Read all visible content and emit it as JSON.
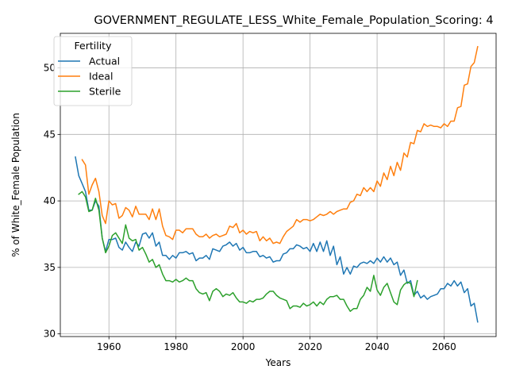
{
  "chart_data": {
    "type": "line",
    "title": "GOVERNMENT_REGULATE_LESS_White_Female_Population_Scoring: 4",
    "xlabel": "Years",
    "ylabel": "% of White_Female Population",
    "xlim": [
      1945.5,
      2075.5
    ],
    "ylim": [
      29.8,
      52.6
    ],
    "x_ticks": [
      1960,
      1980,
      2000,
      2020,
      2040,
      2060
    ],
    "y_ticks": [
      30,
      35,
      40,
      45,
      50
    ],
    "grid": true,
    "legend": {
      "title": "Fertility",
      "placement": "upper-left"
    },
    "series": [
      {
        "name": "Actual",
        "color": "#1f77b4",
        "x": [
          1950,
          1951,
          1952,
          1953,
          1954,
          1955,
          1956,
          1957,
          1958,
          1959,
          1960,
          1961,
          1962,
          1963,
          1964,
          1965,
          1966,
          1967,
          1968,
          1969,
          1970,
          1971,
          1972,
          1973,
          1974,
          1975,
          1976,
          1977,
          1978,
          1979,
          1980,
          1981,
          1982,
          1983,
          1984,
          1985,
          1986,
          1987,
          1988,
          1989,
          1990,
          1991,
          1992,
          1993,
          1994,
          1995,
          1996,
          1997,
          1998,
          1999,
          2000,
          2001,
          2002,
          2003,
          2004,
          2005,
          2006,
          2007,
          2008,
          2009,
          2010,
          2011,
          2012,
          2013,
          2014,
          2015,
          2016,
          2017,
          2018,
          2019,
          2020,
          2021,
          2022,
          2023,
          2024,
          2025,
          2026,
          2027,
          2028,
          2029,
          2030,
          2031,
          2032,
          2033,
          2034,
          2035,
          2036,
          2037,
          2038,
          2039,
          2040,
          2041,
          2042,
          2043,
          2044,
          2045,
          2046,
          2047,
          2048,
          2049,
          2050,
          2051,
          2052,
          2053,
          2054,
          2055,
          2056,
          2057,
          2058,
          2059,
          2060,
          2061,
          2062,
          2063,
          2064,
          2065,
          2066,
          2067,
          2068,
          2069,
          2070
        ],
        "values": [
          43.3,
          41.9,
          41.3,
          40.7,
          39.3,
          39.3,
          40.0,
          39.6,
          37.2,
          36.2,
          37.1,
          37.1,
          37.2,
          36.5,
          36.3,
          36.9,
          36.5,
          36.2,
          36.9,
          36.6,
          37.5,
          37.6,
          37.2,
          37.6,
          36.6,
          36.9,
          35.9,
          35.9,
          35.6,
          35.9,
          35.7,
          36.1,
          36.1,
          36.2,
          36.0,
          36.1,
          35.5,
          35.7,
          35.7,
          35.9,
          35.6,
          36.4,
          36.3,
          36.2,
          36.6,
          36.7,
          36.9,
          36.6,
          36.8,
          36.3,
          36.5,
          36.1,
          36.1,
          36.2,
          36.2,
          35.8,
          35.9,
          35.7,
          35.8,
          35.4,
          35.5,
          35.5,
          36.0,
          36.1,
          36.4,
          36.4,
          36.7,
          36.6,
          36.4,
          36.5,
          36.2,
          36.8,
          36.2,
          36.9,
          36.2,
          37.0,
          35.9,
          36.6,
          35.2,
          35.8,
          34.5,
          35.0,
          34.5,
          35.1,
          35.0,
          35.3,
          35.4,
          35.3,
          35.5,
          35.3,
          35.7,
          35.4,
          35.8,
          35.4,
          35.7,
          35.2,
          35.4,
          34.4,
          34.8,
          33.8,
          34.0,
          32.9,
          33.2,
          32.7,
          32.9,
          32.6,
          32.8,
          32.9,
          33.0,
          33.4,
          33.4,
          33.8,
          33.6,
          34.0,
          33.6,
          33.9,
          33.1,
          33.4,
          32.1,
          32.3,
          30.9
        ]
      },
      {
        "name": "Ideal",
        "color": "#ff7f0e",
        "x": [
          1952,
          1953,
          1954,
          1955,
          1956,
          1957,
          1958,
          1959,
          1960,
          1961,
          1962,
          1963,
          1964,
          1965,
          1966,
          1967,
          1968,
          1969,
          1970,
          1971,
          1972,
          1973,
          1974,
          1975,
          1976,
          1977,
          1978,
          1979,
          1980,
          1981,
          1982,
          1983,
          1984,
          1985,
          1986,
          1987,
          1988,
          1989,
          1990,
          1991,
          1992,
          1993,
          1994,
          1995,
          1996,
          1997,
          1998,
          1999,
          2000,
          2001,
          2002,
          2003,
          2004,
          2005,
          2006,
          2007,
          2008,
          2009,
          2010,
          2011,
          2012,
          2013,
          2014,
          2015,
          2016,
          2017,
          2018,
          2019,
          2020,
          2021,
          2022,
          2023,
          2024,
          2025,
          2026,
          2027,
          2028,
          2029,
          2030,
          2031,
          2032,
          2033,
          2034,
          2035,
          2036,
          2037,
          2038,
          2039,
          2040,
          2041,
          2042,
          2043,
          2044,
          2045,
          2046,
          2047,
          2048,
          2049,
          2050,
          2051,
          2052,
          2053,
          2054,
          2055,
          2056,
          2057,
          2058,
          2059,
          2060,
          2061,
          2062,
          2063,
          2064,
          2065,
          2066,
          2067,
          2068,
          2069,
          2070
        ],
        "values": [
          43.1,
          42.7,
          40.5,
          41.2,
          41.7,
          40.7,
          38.9,
          38.3,
          40.0,
          39.7,
          39.8,
          38.7,
          38.9,
          39.5,
          39.3,
          38.8,
          39.6,
          39.0,
          39.0,
          39.0,
          38.6,
          39.4,
          38.6,
          39.4,
          38.1,
          37.4,
          37.3,
          37.1,
          37.8,
          37.8,
          37.6,
          37.9,
          37.9,
          37.9,
          37.5,
          37.3,
          37.3,
          37.5,
          37.2,
          37.4,
          37.5,
          37.3,
          37.4,
          37.5,
          38.1,
          38.0,
          38.3,
          37.6,
          37.8,
          37.5,
          37.7,
          37.6,
          37.7,
          37.0,
          37.3,
          37.0,
          37.2,
          36.8,
          36.9,
          36.8,
          37.3,
          37.7,
          37.9,
          38.1,
          38.6,
          38.4,
          38.6,
          38.6,
          38.5,
          38.6,
          38.8,
          39.0,
          38.9,
          39.0,
          39.2,
          39.0,
          39.2,
          39.3,
          39.4,
          39.4,
          39.9,
          40.0,
          40.5,
          40.4,
          41.0,
          40.7,
          41.0,
          40.7,
          41.5,
          41.1,
          42.1,
          41.6,
          42.6,
          41.9,
          42.9,
          42.3,
          43.6,
          43.3,
          44.4,
          44.3,
          45.3,
          45.2,
          45.8,
          45.6,
          45.7,
          45.6,
          45.6,
          45.5,
          45.8,
          45.6,
          46.0,
          46.0,
          47.0,
          47.1,
          48.7,
          48.8,
          50.1,
          50.4,
          51.6
        ]
      },
      {
        "name": "Sterile",
        "color": "#2ca02c",
        "x": [
          1951,
          1952,
          1953,
          1954,
          1955,
          1956,
          1957,
          1958,
          1959,
          1960,
          1961,
          1962,
          1963,
          1964,
          1965,
          1966,
          1967,
          1968,
          1969,
          1970,
          1971,
          1972,
          1973,
          1974,
          1975,
          1976,
          1977,
          1978,
          1979,
          1980,
          1981,
          1982,
          1983,
          1984,
          1985,
          1986,
          1987,
          1988,
          1989,
          1990,
          1991,
          1992,
          1993,
          1994,
          1995,
          1996,
          1997,
          1998,
          1999,
          2000,
          2001,
          2002,
          2003,
          2004,
          2005,
          2006,
          2007,
          2008,
          2009,
          2010,
          2011,
          2012,
          2013,
          2014,
          2015,
          2016,
          2017,
          2018,
          2019,
          2020,
          2021,
          2022,
          2023,
          2024,
          2025,
          2026,
          2027,
          2028,
          2029,
          2030,
          2031,
          2032,
          2033,
          2034,
          2035,
          2036,
          2037,
          2038,
          2039,
          2040,
          2041,
          2042,
          2043,
          2044,
          2045,
          2046,
          2047,
          2048,
          2049,
          2050,
          2051,
          2052
        ],
        "values": [
          40.5,
          40.7,
          40.3,
          39.2,
          39.3,
          40.2,
          39.3,
          37.2,
          36.1,
          36.6,
          37.4,
          37.6,
          37.2,
          36.8,
          38.2,
          37.2,
          37.0,
          37.1,
          36.3,
          36.5,
          36.0,
          35.4,
          35.6,
          35.0,
          35.2,
          34.5,
          34.0,
          34.0,
          33.9,
          34.1,
          33.9,
          34.0,
          34.2,
          34.0,
          34.0,
          33.4,
          33.1,
          33.0,
          33.1,
          32.5,
          33.2,
          33.4,
          33.2,
          32.8,
          33.0,
          32.9,
          33.1,
          32.7,
          32.4,
          32.4,
          32.3,
          32.5,
          32.4,
          32.6,
          32.6,
          32.7,
          33.0,
          33.2,
          33.2,
          32.9,
          32.7,
          32.6,
          32.5,
          31.9,
          32.1,
          32.1,
          32.0,
          32.3,
          32.1,
          32.2,
          32.4,
          32.1,
          32.4,
          32.2,
          32.6,
          32.8,
          32.8,
          32.9,
          32.6,
          32.6,
          32.1,
          31.7,
          31.9,
          31.9,
          32.6,
          32.9,
          33.5,
          33.2,
          34.4,
          33.3,
          32.9,
          33.5,
          33.8,
          33.1,
          32.4,
          32.2,
          33.3,
          33.7,
          33.9,
          33.8,
          32.8,
          34.0
        ]
      }
    ]
  }
}
